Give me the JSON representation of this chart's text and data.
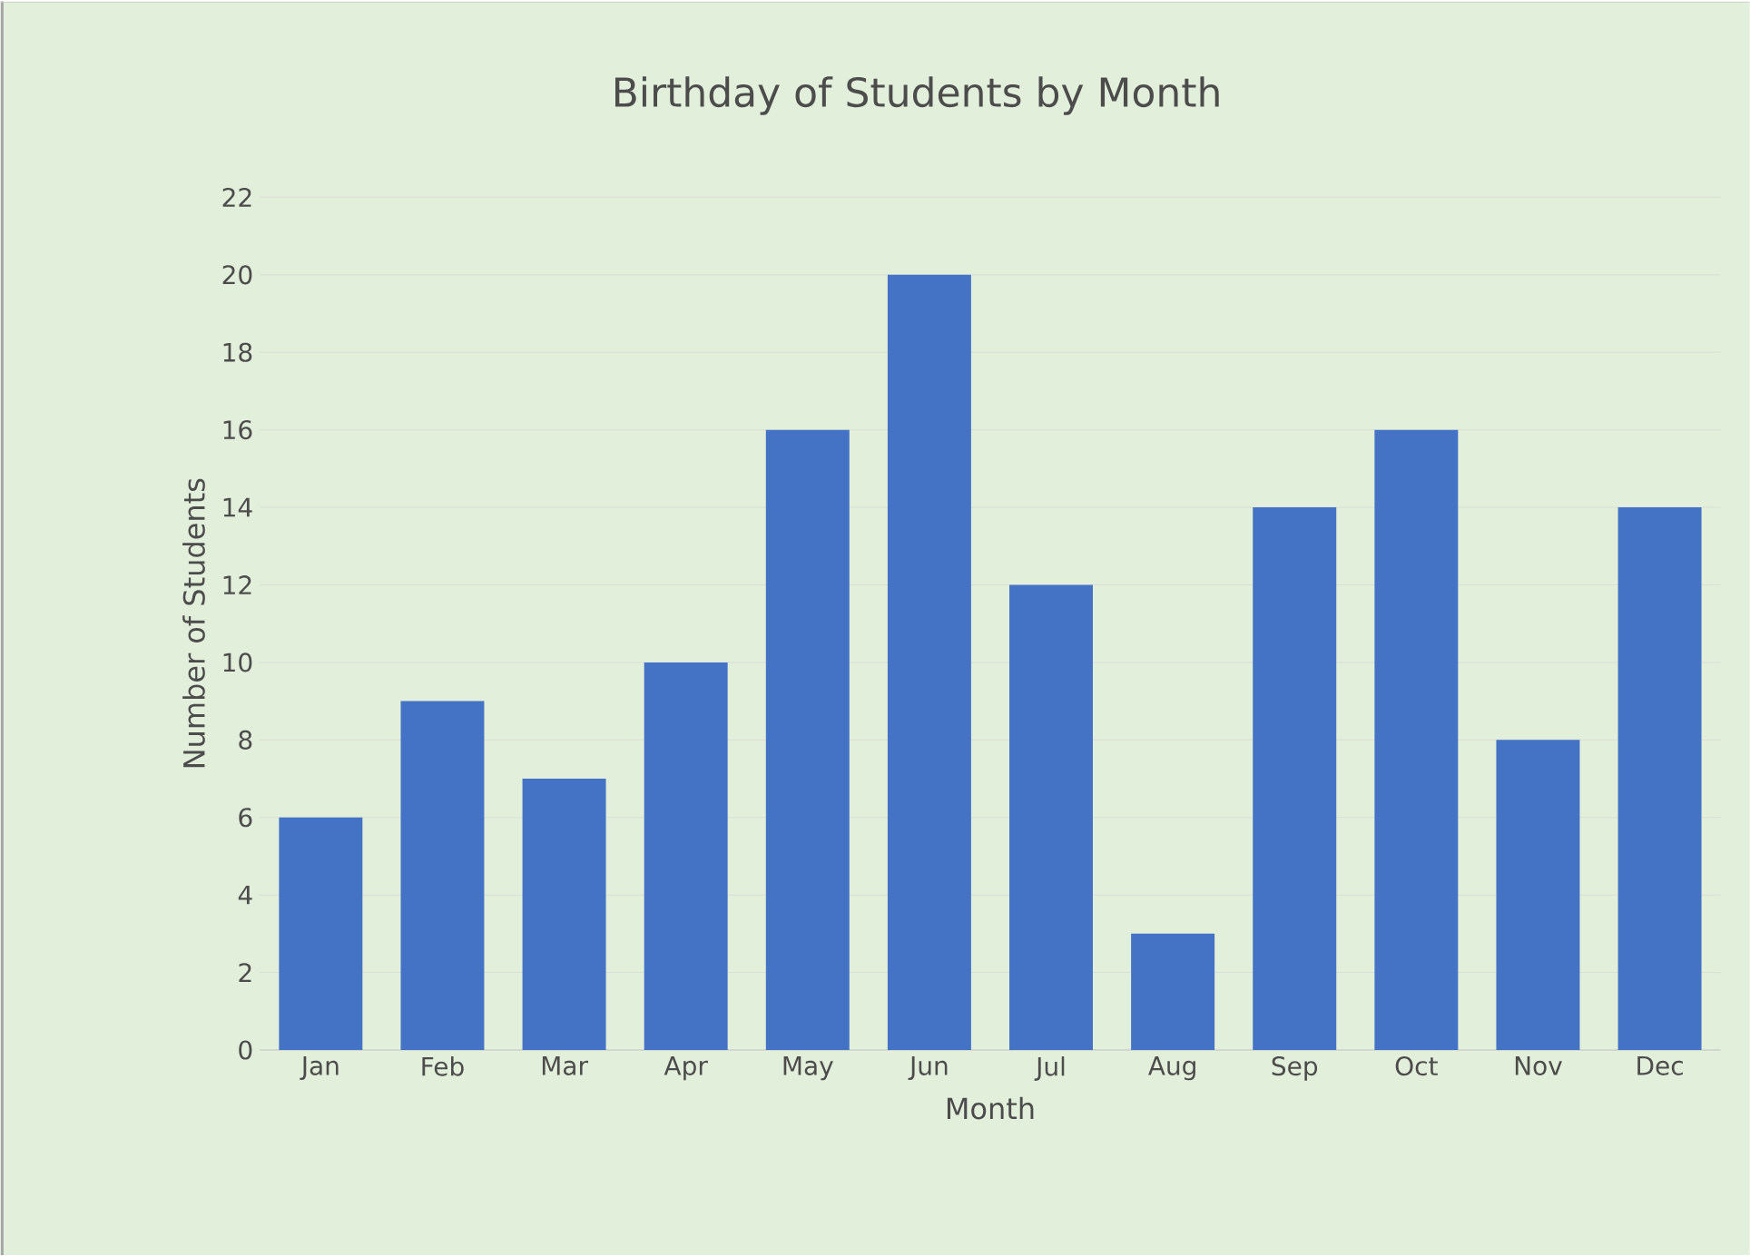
{
  "chart_data": {
    "type": "bar",
    "title": "Birthday of Students by Month",
    "xlabel": "Month",
    "ylabel": "Number of Students",
    "categories": [
      "Jan",
      "Feb",
      "Mar",
      "Apr",
      "May",
      "Jun",
      "Jul",
      "Aug",
      "Sep",
      "Oct",
      "Nov",
      "Dec"
    ],
    "values": [
      6,
      9,
      7,
      10,
      16,
      20,
      12,
      3,
      14,
      16,
      8,
      14
    ],
    "color": "#4472c4",
    "ylim": [
      0,
      22
    ],
    "yticks": [
      0,
      2,
      4,
      6,
      8,
      10,
      12,
      14,
      16,
      18,
      20,
      22
    ],
    "grid": "y"
  }
}
